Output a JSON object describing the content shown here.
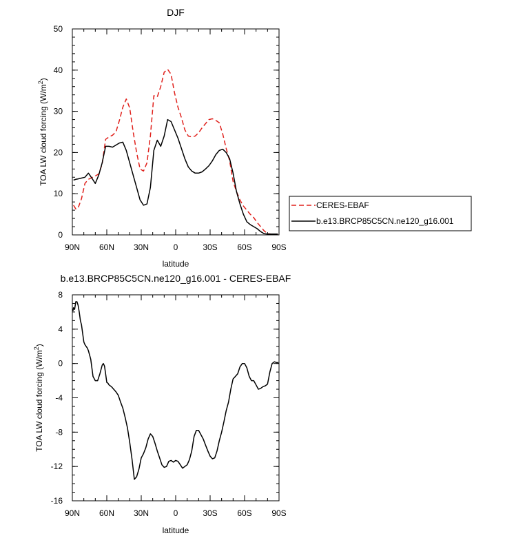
{
  "chart_data": [
    {
      "type": "line",
      "title": "DJF",
      "xlabel": "latitude",
      "ylabel": "TOA LW cloud forcing (W/m",
      "ylabel_sup": "2",
      "ylabel_close": ")",
      "xlim": [
        90,
        -90
      ],
      "ylim": [
        0,
        50
      ],
      "x_ticks": [
        {
          "value": 90,
          "label": "90N"
        },
        {
          "value": 60,
          "label": "60N"
        },
        {
          "value": 30,
          "label": "30N"
        },
        {
          "value": 0,
          "label": "0"
        },
        {
          "value": -30,
          "label": "30S"
        },
        {
          "value": -60,
          "label": "60S"
        },
        {
          "value": -90,
          "label": "90S"
        }
      ],
      "y_ticks": [
        0,
        10,
        20,
        30,
        40,
        50
      ],
      "legend": [
        "CERES-EBAF",
        "b.e13.BRCP85C5CN.ne120_g16.001"
      ],
      "series": [
        {
          "name": "CERES-EBAF",
          "color": "#e0201b",
          "dash": "dashed",
          "x": [
            89,
            87,
            85,
            82,
            79,
            76,
            73,
            70,
            67,
            64,
            61,
            58,
            55,
            52,
            49,
            46,
            43,
            40,
            37,
            34,
            31,
            28,
            25,
            22,
            19,
            16,
            13,
            10,
            7,
            4,
            1,
            -2,
            -5,
            -8,
            -11,
            -14,
            -17,
            -20,
            -23,
            -26,
            -29,
            -32,
            -35,
            -38,
            -41,
            -44,
            -47,
            -50,
            -53,
            -56,
            -59,
            -62,
            -65,
            -68,
            -71,
            -74,
            -77,
            -80,
            -83,
            -86,
            -89
          ],
          "values": [
            7.2,
            6.3,
            6.5,
            8.8,
            12.5,
            13.5,
            13.9,
            14.3,
            14.8,
            17.2,
            23.2,
            23.8,
            24.2,
            25.0,
            27.8,
            31.0,
            33.0,
            30.8,
            25.0,
            20.0,
            16.0,
            15.5,
            17.5,
            24.0,
            33.8,
            33.5,
            36.0,
            39.5,
            40.2,
            39.0,
            34.5,
            31.0,
            28.5,
            25.5,
            24.0,
            23.8,
            24.0,
            24.8,
            26.0,
            27.0,
            28.0,
            28.2,
            27.8,
            27.2,
            24.5,
            21.0,
            18.0,
            13.0,
            10.5,
            8.5,
            7.0,
            6.0,
            5.0,
            4.2,
            3.0,
            2.0,
            1.0,
            0.3,
            0.2,
            0.2,
            0.2
          ]
        },
        {
          "name": "b.e13.BRCP85C5CN.ne120_g16.001",
          "color": "#000000",
          "dash": "solid",
          "x": [
            89,
            87,
            85,
            82,
            79,
            76,
            73,
            70,
            67,
            64,
            61,
            58,
            55,
            52,
            49,
            46,
            43,
            40,
            37,
            34,
            31,
            28,
            25,
            22,
            19,
            16,
            13,
            10,
            7,
            4,
            1,
            -2,
            -5,
            -8,
            -11,
            -14,
            -17,
            -20,
            -23,
            -26,
            -29,
            -32,
            -35,
            -38,
            -41,
            -44,
            -47,
            -50,
            -53,
            -56,
            -59,
            -62,
            -65,
            -68,
            -71,
            -74,
            -77,
            -80,
            -83,
            -86,
            -89
          ],
          "values": [
            13.3,
            13.5,
            13.6,
            13.8,
            14.0,
            15.0,
            13.8,
            12.5,
            14.5,
            17.5,
            21.5,
            21.5,
            21.3,
            21.8,
            22.3,
            22.5,
            20.5,
            17.5,
            14.5,
            11.5,
            8.5,
            7.2,
            7.5,
            11.5,
            20.5,
            23.0,
            21.5,
            24.0,
            28.0,
            27.5,
            25.5,
            23.5,
            21.0,
            18.5,
            16.5,
            15.5,
            15.0,
            15.0,
            15.3,
            16.0,
            16.8,
            18.0,
            19.5,
            20.5,
            20.8,
            20.0,
            18.5,
            15.0,
            10.5,
            7.5,
            5.0,
            3.2,
            2.5,
            2.0,
            1.5,
            0.8,
            0.3,
            0.2,
            0.2,
            0.2,
            0.2
          ]
        }
      ]
    },
    {
      "type": "line",
      "title": "b.e13.BRCP85C5CN.ne120_g16.001 - CERES-EBAF",
      "xlabel": "latitude",
      "ylabel": "TOA LW cloud forcing (W/m",
      "ylabel_sup": "2",
      "ylabel_close": ")",
      "xlim": [
        90,
        -90
      ],
      "ylim": [
        -16,
        8
      ],
      "x_ticks": [
        {
          "value": 90,
          "label": "90N"
        },
        {
          "value": 60,
          "label": "60N"
        },
        {
          "value": 30,
          "label": "30N"
        },
        {
          "value": 0,
          "label": "0"
        },
        {
          "value": -30,
          "label": "30S"
        },
        {
          "value": -60,
          "label": "60S"
        },
        {
          "value": -90,
          "label": "90S"
        }
      ],
      "y_ticks": [
        -16,
        -12,
        -8,
        -4,
        0,
        4,
        8
      ],
      "series": [
        {
          "name": "b.e13.BRCP85C5CN.ne120_g16.001 - CERES-EBAF",
          "color": "#000000",
          "dash": "solid",
          "x": [
            89.5,
            89,
            88,
            87,
            86,
            85,
            84,
            83,
            82,
            81,
            80,
            79,
            78,
            77,
            76,
            74,
            72,
            70,
            68,
            66,
            64,
            63,
            62,
            61,
            60,
            59,
            58,
            56,
            54,
            52,
            50,
            48,
            46,
            44,
            42,
            40,
            38,
            36,
            34,
            32,
            30,
            28,
            26,
            24,
            22,
            20,
            18,
            16,
            14,
            12,
            10,
            8,
            6,
            4,
            2,
            0,
            -2,
            -4,
            -6,
            -8,
            -10,
            -12,
            -14,
            -16,
            -18,
            -20,
            -22,
            -24,
            -26,
            -28,
            -30,
            -32,
            -34,
            -36,
            -38,
            -40,
            -42,
            -44,
            -46,
            -48,
            -50,
            -52,
            -54,
            -56,
            -58,
            -60,
            -62,
            -64,
            -66,
            -68,
            -70,
            -72,
            -74,
            -76,
            -78,
            -80,
            -82,
            -84,
            -86,
            -88,
            -89.5
          ],
          "values": [
            6.1,
            6.5,
            6.3,
            7.2,
            7.2,
            6.8,
            6.0,
            5.0,
            4.5,
            3.5,
            2.5,
            2.2,
            2.0,
            1.8,
            1.5,
            0.5,
            -1.5,
            -2.0,
            -2.0,
            -1.2,
            -0.2,
            0.0,
            -0.3,
            -1.2,
            -2.2,
            -2.3,
            -2.5,
            -2.7,
            -3.0,
            -3.3,
            -3.7,
            -4.5,
            -5.2,
            -6.3,
            -7.5,
            -9.2,
            -11.2,
            -13.5,
            -13.2,
            -12.3,
            -11.0,
            -10.5,
            -9.8,
            -8.8,
            -8.2,
            -8.5,
            -9.3,
            -10.2,
            -11.0,
            -11.8,
            -12.1,
            -12.0,
            -11.4,
            -11.3,
            -11.5,
            -11.3,
            -11.4,
            -11.8,
            -12.2,
            -12.0,
            -11.8,
            -11.2,
            -10.2,
            -8.5,
            -7.8,
            -7.8,
            -8.3,
            -8.8,
            -9.5,
            -10.2,
            -10.8,
            -11.1,
            -11.0,
            -10.2,
            -9.0,
            -8.0,
            -6.8,
            -5.5,
            -4.5,
            -3.0,
            -1.8,
            -1.5,
            -1.2,
            -0.4,
            0.0,
            0.0,
            -0.5,
            -1.5,
            -2.0,
            -2.0,
            -2.5,
            -3.0,
            -2.9,
            -2.7,
            -2.6,
            -2.4,
            -1.0,
            0.0,
            0.2,
            0.1,
            0.1
          ]
        }
      ]
    }
  ]
}
